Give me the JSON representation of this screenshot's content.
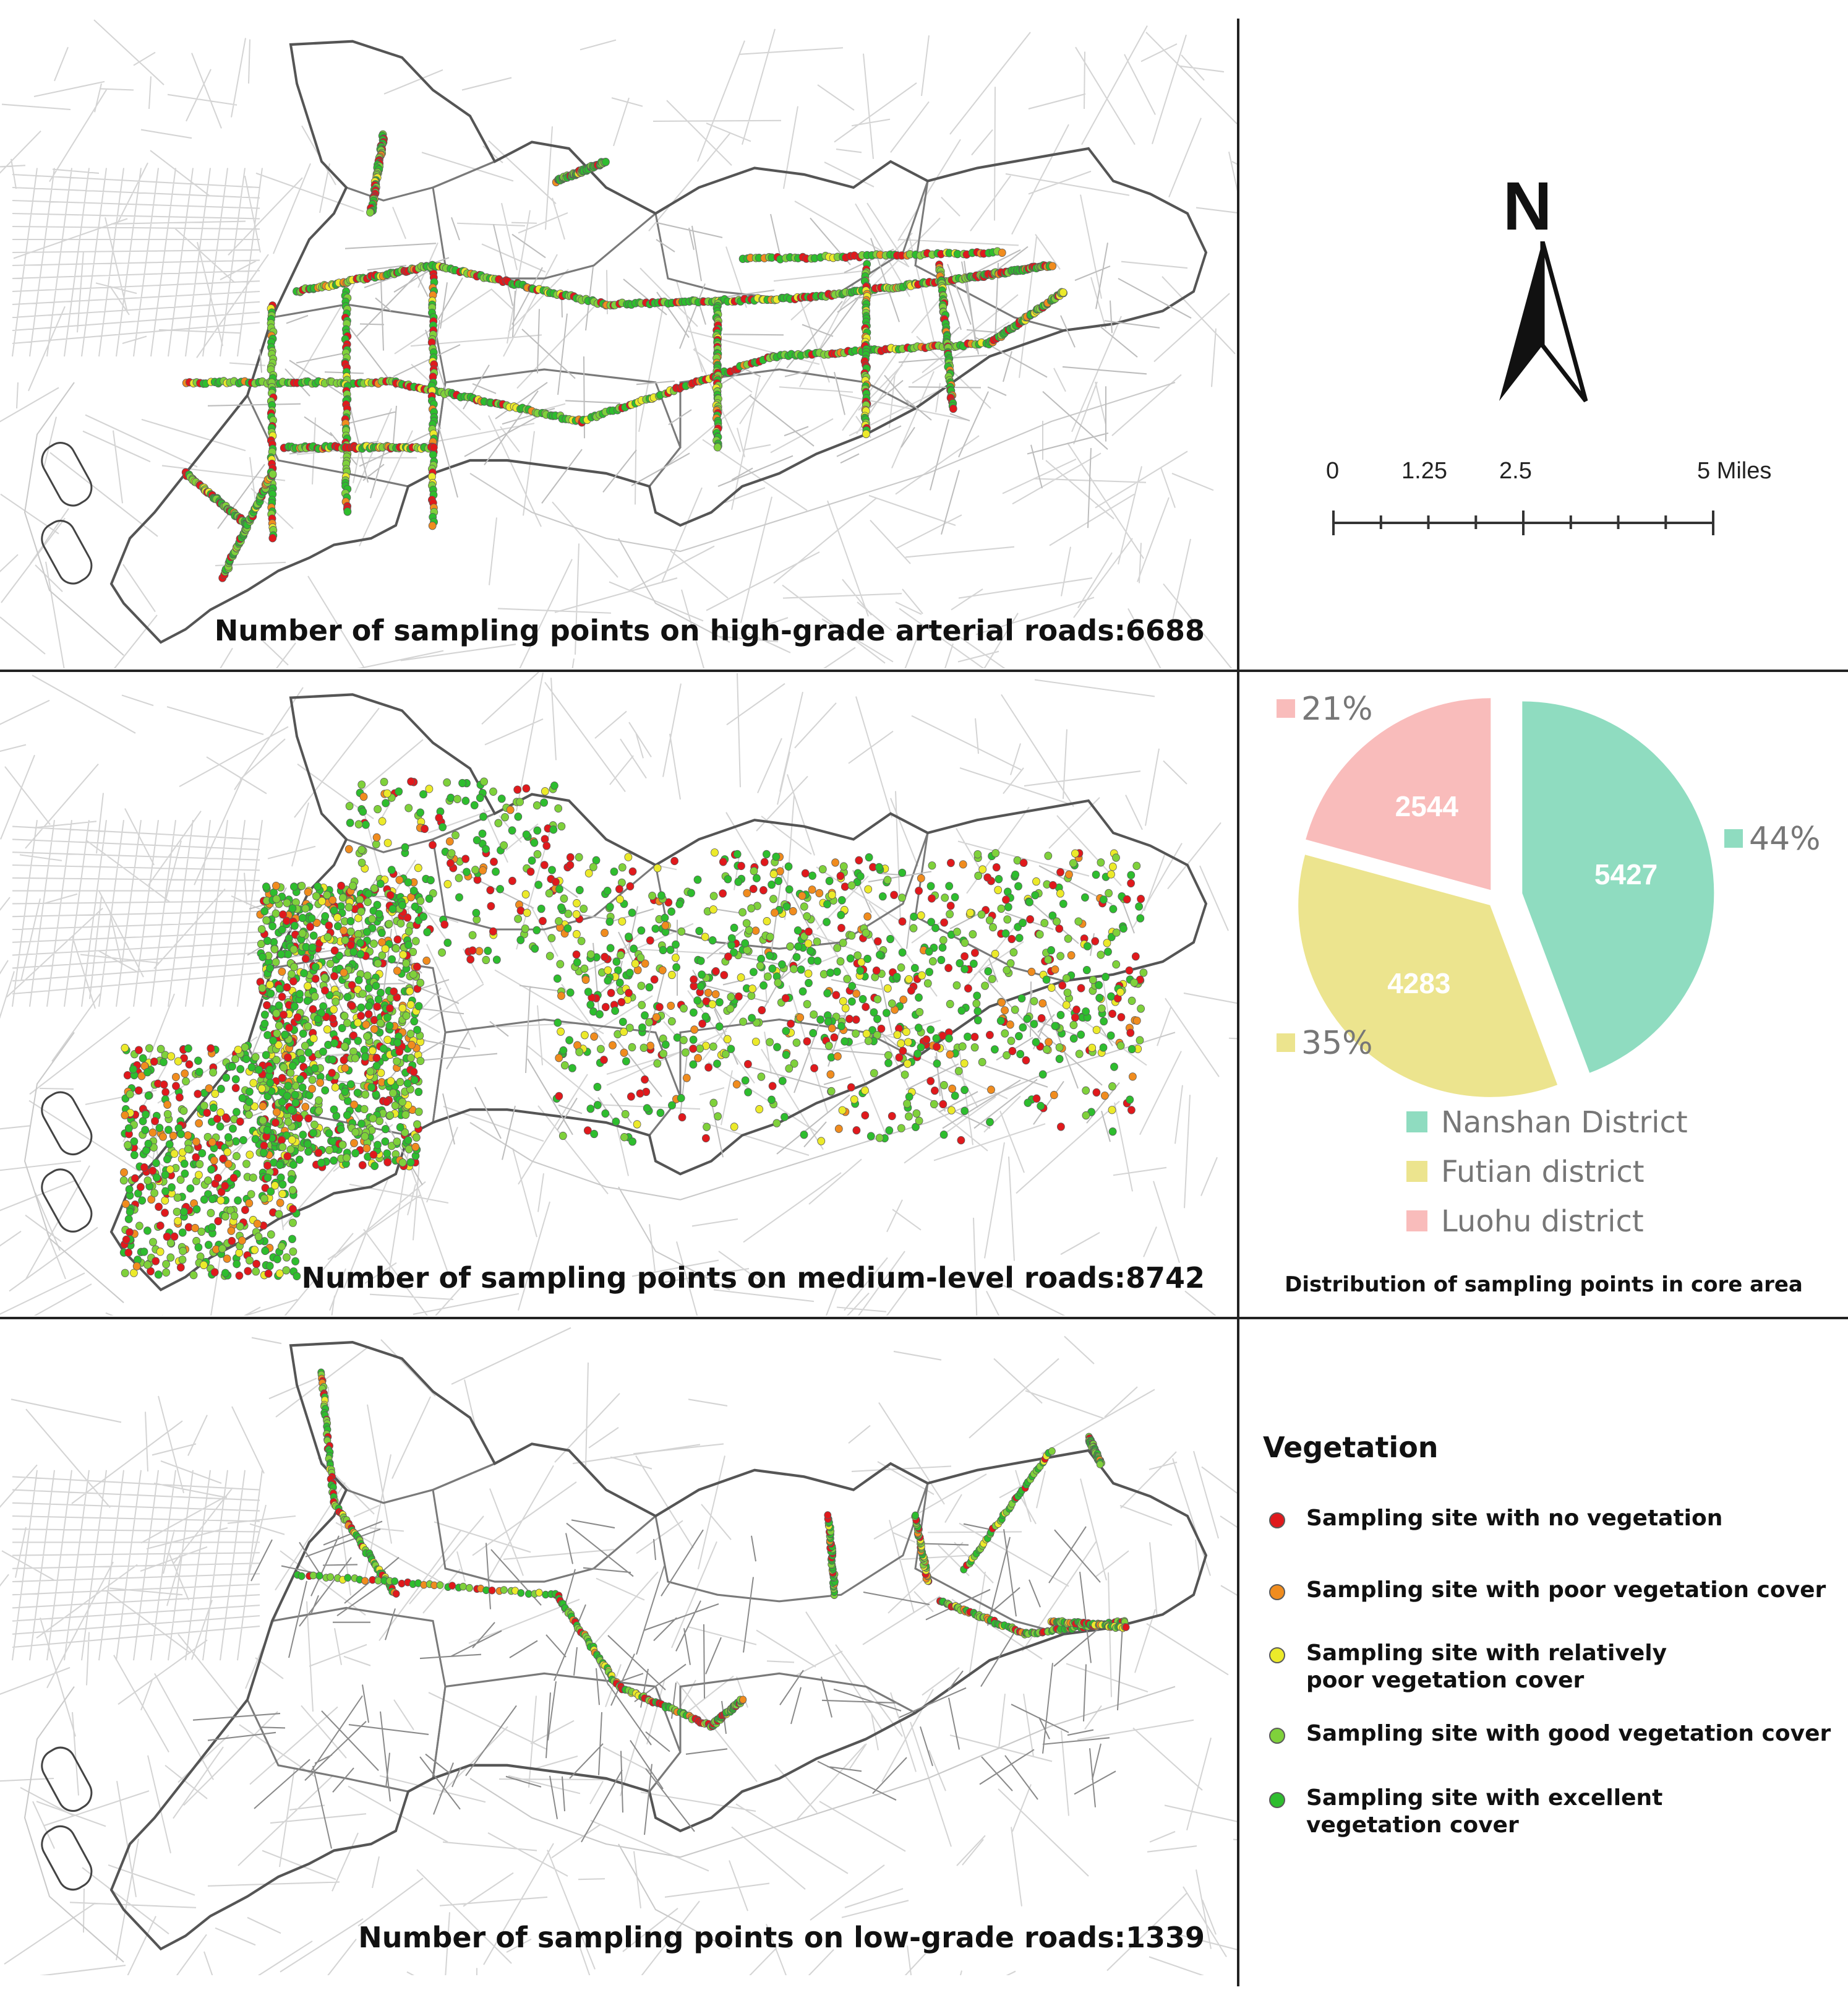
{
  "maps": [
    {
      "caption": "Number of sampling points on high-grade arterial roads:6688"
    },
    {
      "caption": "Number of sampling points on medium-level roads:8742"
    },
    {
      "caption": "Number of sampling points on low-grade roads:1339"
    }
  ],
  "north_arrow": {
    "letter": "N"
  },
  "scale_bar": {
    "labels": [
      "0",
      "1.25",
      "2.5",
      "5 Miles"
    ],
    "values": [
      0,
      1.25,
      2.5,
      5
    ]
  },
  "chart_data": {
    "type": "pie",
    "title": "Distribution of sampling points in core area",
    "slices": [
      {
        "label": "Nanshan District",
        "value": 5427,
        "percent": "44%",
        "color": "#8fdcc0"
      },
      {
        "label": "Futian district",
        "value": 4283,
        "percent": "35%",
        "color": "#ece48e"
      },
      {
        "label": "Luohu district",
        "value": 2544,
        "percent": "21%",
        "color": "#f9bcbb"
      }
    ],
    "legend_placement": "bottom"
  },
  "vegetation_legend": {
    "title": "Vegetation",
    "items": [
      {
        "label": "Sampling site with no vegetation",
        "color": "#e0191c"
      },
      {
        "label": "Sampling site with poor vegetation cover",
        "color": "#f08c1e"
      },
      {
        "label": "Sampling site with relatively poor vegetation cover",
        "color": "#ecea2a"
      },
      {
        "label": "Sampling site with good vegetation cover",
        "color": "#7fd13b"
      },
      {
        "label": "Sampling site with excellent vegetation cover",
        "color": "#2ebd2e"
      }
    ]
  }
}
